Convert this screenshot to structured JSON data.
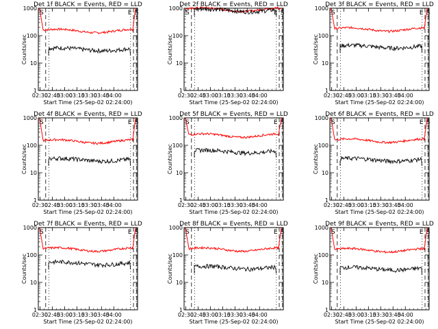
{
  "figure": {
    "ylabel": "Counts/sec",
    "xlabel": "Start Time (25-Sep-02 02:24:00)",
    "x_tick_labels": [
      "02:30",
      "02:45",
      "03:00",
      "03:15",
      "03:30",
      "03:45",
      "04:00"
    ],
    "y_tick_labels": [
      "1",
      "10",
      "100",
      "1000"
    ],
    "markers": {
      "start": "S",
      "end": "E",
      "s_after_end": "S"
    },
    "series_colors": {
      "events": "#000000",
      "lld": "#ff0000"
    }
  },
  "chart_data": [
    {
      "type": "line",
      "title": "Det 1f BLACK = Events, RED = LLD",
      "lld_level": 150,
      "events_level": 32,
      "ylim": [
        1,
        1000
      ],
      "x_range_minutes": [
        124,
        245
      ],
      "series": [
        {
          "name": "Events",
          "level": 32
        },
        {
          "name": "LLD",
          "level": 150
        }
      ]
    },
    {
      "type": "line",
      "title": "Det 2f BLACK = Events, RED = LLD",
      "lld_level": 900,
      "events_level": 850,
      "ylim": [
        1,
        1000
      ],
      "x_range_minutes": [
        124,
        245
      ],
      "series": [
        {
          "name": "Events",
          "level": 850
        },
        {
          "name": "LLD",
          "level": 900
        }
      ]
    },
    {
      "type": "line",
      "title": "Det 3f BLACK = Events, RED = LLD",
      "lld_level": 170,
      "events_level": 40,
      "ylim": [
        1,
        1000
      ],
      "x_range_minutes": [
        124,
        245
      ],
      "series": [
        {
          "name": "Events",
          "level": 40
        },
        {
          "name": "LLD",
          "level": 170
        }
      ]
    },
    {
      "type": "line",
      "title": "Det 4f BLACK = Events, RED = LLD",
      "lld_level": 140,
      "events_level": 30,
      "ylim": [
        1,
        1000
      ],
      "x_range_minutes": [
        124,
        245
      ],
      "series": [
        {
          "name": "Events",
          "level": 30
        },
        {
          "name": "LLD",
          "level": 140
        }
      ]
    },
    {
      "type": "line",
      "title": "Det 5f BLACK = Events, RED = LLD",
      "lld_level": 230,
      "events_level": 60,
      "ylim": [
        1,
        1000
      ],
      "x_range_minutes": [
        124,
        245
      ],
      "series": [
        {
          "name": "Events",
          "level": 60
        },
        {
          "name": "LLD",
          "level": 230
        }
      ]
    },
    {
      "type": "line",
      "title": "Det 6f BLACK = Events, RED = LLD",
      "lld_level": 150,
      "events_level": 30,
      "ylim": [
        1,
        1000
      ],
      "x_range_minutes": [
        124,
        245
      ],
      "series": [
        {
          "name": "Events",
          "level": 30
        },
        {
          "name": "LLD",
          "level": 150
        }
      ]
    },
    {
      "type": "line",
      "title": "Det 7f BLACK = Events, RED = LLD",
      "lld_level": 160,
      "events_level": 50,
      "ylim": [
        1,
        1000
      ],
      "x_range_minutes": [
        124,
        245
      ],
      "series": [
        {
          "name": "Events",
          "level": 50
        },
        {
          "name": "LLD",
          "level": 160
        }
      ]
    },
    {
      "type": "line",
      "title": "Det 8f BLACK = Events, RED = LLD",
      "lld_level": 160,
      "events_level": 35,
      "ylim": [
        1,
        1000
      ],
      "x_range_minutes": [
        124,
        245
      ],
      "series": [
        {
          "name": "Events",
          "level": 35
        },
        {
          "name": "LLD",
          "level": 160
        }
      ]
    },
    {
      "type": "line",
      "title": "Det 9f BLACK = Events, RED = LLD",
      "lld_level": 150,
      "events_level": 32,
      "ylim": [
        1,
        1000
      ],
      "x_range_minutes": [
        124,
        245
      ],
      "series": [
        {
          "name": "Events",
          "level": 32
        },
        {
          "name": "LLD",
          "level": 150
        }
      ]
    }
  ]
}
